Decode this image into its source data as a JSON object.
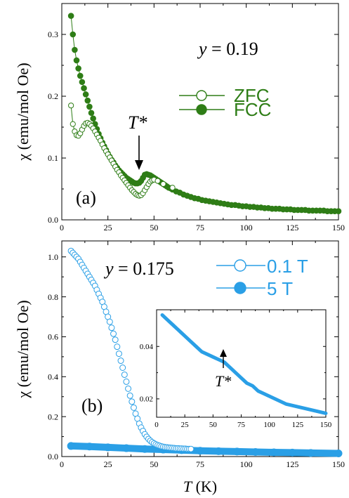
{
  "chart_data": [
    {
      "type": "scatter",
      "panel_label": "(a)",
      "annotation": "y = 0.19",
      "annotation_var": "y",
      "annotation_rest": " = 0.19",
      "marker_label": "T*",
      "ylabel": "χ (emu/mol Oe)",
      "xlim": [
        0,
        150
      ],
      "ylim": [
        0,
        0.35
      ],
      "x_ticks": [
        0,
        25,
        50,
        75,
        100,
        125,
        150
      ],
      "x_tick_labels": [
        "0",
        "25",
        "50",
        "75",
        "100",
        "125",
        "150"
      ],
      "y_ticks": [
        0.0,
        0.1,
        0.2,
        0.3
      ],
      "y_tick_labels": [
        "0.0",
        "0.1",
        "0.2",
        "0.3"
      ],
      "series": [
        {
          "name": "ZFC",
          "color": "#2e7d16",
          "marker": "open-circle",
          "x": [
            5,
            6,
            7,
            8,
            9,
            10,
            11,
            12,
            13,
            14,
            15,
            16,
            17,
            18,
            19,
            20,
            21,
            22,
            23,
            24,
            25,
            26,
            27,
            28,
            29,
            30,
            31,
            32,
            33,
            34,
            35,
            36,
            37,
            38,
            39,
            40,
            41,
            42,
            43,
            44,
            45,
            46,
            47,
            48,
            49,
            50,
            52,
            55,
            60
          ],
          "y": [
            0.185,
            0.155,
            0.143,
            0.137,
            0.136,
            0.14,
            0.146,
            0.152,
            0.156,
            0.157,
            0.155,
            0.152,
            0.148,
            0.143,
            0.138,
            0.133,
            0.128,
            0.122,
            0.116,
            0.111,
            0.106,
            0.101,
            0.096,
            0.091,
            0.086,
            0.081,
            0.077,
            0.072,
            0.068,
            0.064,
            0.06,
            0.056,
            0.052,
            0.048,
            0.045,
            0.042,
            0.04,
            0.039,
            0.04,
            0.043,
            0.048,
            0.053,
            0.058,
            0.062,
            0.064,
            0.065,
            0.063,
            0.058,
            0.052
          ]
        },
        {
          "name": "FCC",
          "color": "#2e7d16",
          "marker": "filled-circle",
          "x": [
            5,
            6,
            7,
            8,
            9,
            10,
            11,
            12,
            13,
            14,
            15,
            16,
            17,
            18,
            19,
            20,
            21,
            22,
            23,
            24,
            25,
            26,
            27,
            28,
            29,
            30,
            31,
            32,
            33,
            34,
            35,
            36,
            37,
            38,
            39,
            40,
            41,
            42,
            43,
            44,
            45,
            46,
            47,
            48,
            49,
            50,
            51,
            52,
            53,
            54,
            55,
            56,
            57,
            58,
            59,
            60,
            62,
            64,
            66,
            68,
            70,
            72,
            74,
            76,
            78,
            80,
            82,
            84,
            86,
            88,
            90,
            92,
            94,
            96,
            98,
            100,
            102,
            104,
            106,
            108,
            110,
            112,
            114,
            116,
            118,
            120,
            122,
            124,
            126,
            128,
            130,
            132,
            134,
            136,
            138,
            140,
            142,
            144,
            146,
            148,
            150
          ],
          "y": [
            0.33,
            0.3,
            0.275,
            0.258,
            0.245,
            0.233,
            0.223,
            0.213,
            0.203,
            0.193,
            0.183,
            0.173,
            0.164,
            0.155,
            0.147,
            0.139,
            0.132,
            0.125,
            0.119,
            0.113,
            0.107,
            0.102,
            0.097,
            0.093,
            0.088,
            0.084,
            0.08,
            0.077,
            0.074,
            0.071,
            0.068,
            0.066,
            0.064,
            0.062,
            0.06,
            0.059,
            0.059,
            0.06,
            0.063,
            0.068,
            0.073,
            0.074,
            0.073,
            0.072,
            0.07,
            0.068,
            0.066,
            0.064,
            0.062,
            0.06,
            0.058,
            0.056,
            0.054,
            0.052,
            0.051,
            0.049,
            0.046,
            0.044,
            0.041,
            0.039,
            0.037,
            0.035,
            0.034,
            0.032,
            0.031,
            0.03,
            0.029,
            0.028,
            0.027,
            0.026,
            0.025,
            0.024,
            0.024,
            0.023,
            0.022,
            0.022,
            0.021,
            0.021,
            0.02,
            0.02,
            0.019,
            0.019,
            0.018,
            0.018,
            0.018,
            0.017,
            0.017,
            0.017,
            0.016,
            0.016,
            0.016,
            0.016,
            0.015,
            0.015,
            0.015,
            0.015,
            0.015,
            0.014,
            0.014,
            0.014,
            0.014
          ]
        }
      ]
    },
    {
      "type": "scatter",
      "panel_label": "(b)",
      "annotation": "y = 0.175",
      "annotation_var": "y",
      "annotation_rest": " = 0.175",
      "ylabel": "χ (emu/mol Oe)",
      "xlabel": "T (K)",
      "xlabel_var": "T",
      "xlabel_rest": " (K)",
      "xlim": [
        0,
        150
      ],
      "ylim": [
        0,
        1.08
      ],
      "x_ticks": [
        0,
        25,
        50,
        75,
        100,
        125,
        150
      ],
      "x_tick_labels": [
        "0",
        "25",
        "50",
        "75",
        "100",
        "125",
        "150"
      ],
      "y_ticks": [
        0.0,
        0.2,
        0.4,
        0.6,
        0.8,
        1.0
      ],
      "y_tick_labels": [
        "0.0",
        "0.2",
        "0.4",
        "0.6",
        "0.8",
        "1.0"
      ],
      "series": [
        {
          "name": "0.1 T",
          "color": "#2a9fe6",
          "marker": "open-circle",
          "x": [
            5,
            6,
            7,
            8,
            9,
            10,
            11,
            12,
            13,
            14,
            15,
            16,
            17,
            18,
            19,
            20,
            21,
            22,
            23,
            24,
            25,
            26,
            27,
            28,
            29,
            30,
            31,
            32,
            33,
            34,
            35,
            36,
            37,
            38,
            39,
            40,
            41,
            42,
            43,
            44,
            45,
            46,
            47,
            48,
            49,
            50,
            51,
            52,
            53,
            54,
            55,
            56,
            57,
            58,
            59,
            60,
            61,
            62,
            63,
            64,
            65,
            66,
            67,
            68,
            69,
            70
          ],
          "y": [
            1.03,
            1.02,
            1.01,
            1.0,
            0.99,
            0.975,
            0.96,
            0.945,
            0.93,
            0.915,
            0.9,
            0.885,
            0.87,
            0.855,
            0.835,
            0.815,
            0.795,
            0.775,
            0.75,
            0.725,
            0.7,
            0.675,
            0.645,
            0.615,
            0.585,
            0.55,
            0.515,
            0.48,
            0.445,
            0.41,
            0.375,
            0.34,
            0.305,
            0.275,
            0.245,
            0.215,
            0.19,
            0.165,
            0.145,
            0.128,
            0.112,
            0.099,
            0.088,
            0.079,
            0.072,
            0.066,
            0.061,
            0.057,
            0.054,
            0.051,
            0.049,
            0.047,
            0.046,
            0.045,
            0.044,
            0.043,
            0.042,
            0.041,
            0.041,
            0.04,
            0.04,
            0.039,
            0.039,
            0.038,
            0.038,
            0.038
          ]
        },
        {
          "name": "5 T",
          "color": "#2a9fe6",
          "marker": "filled-circle",
          "x": [
            5,
            15,
            25,
            35,
            45,
            55,
            65,
            75,
            85,
            95,
            105,
            115,
            125,
            135,
            150
          ],
          "y": [
            0.053,
            0.05,
            0.046,
            0.042,
            0.038,
            0.035,
            0.032,
            0.029,
            0.027,
            0.025,
            0.023,
            0.021,
            0.02,
            0.018,
            0.016
          ]
        }
      ],
      "inset": {
        "marker_label": "T*",
        "xlim": [
          0,
          150
        ],
        "ylim": [
          0.013,
          0.054
        ],
        "x_ticks": [
          0,
          25,
          50,
          75,
          100,
          125,
          150
        ],
        "x_tick_labels": [
          "0",
          "25",
          "50",
          "75",
          "100",
          "125",
          "150"
        ],
        "y_ticks": [
          0.02,
          0.04
        ],
        "y_tick_labels": [
          "0.02",
          "0.04"
        ],
        "x": [
          5,
          10,
          15,
          20,
          25,
          30,
          35,
          40,
          45,
          50,
          55,
          60,
          65,
          70,
          75,
          80,
          85,
          90,
          95,
          100,
          105,
          110,
          115,
          120,
          125,
          130,
          135,
          140,
          145,
          150
        ],
        "y": [
          0.052,
          0.05,
          0.048,
          0.046,
          0.044,
          0.042,
          0.04,
          0.038,
          0.037,
          0.036,
          0.035,
          0.034,
          0.032,
          0.03,
          0.028,
          0.026,
          0.025,
          0.023,
          0.022,
          0.021,
          0.02,
          0.019,
          0.018,
          0.0175,
          0.017,
          0.0165,
          0.016,
          0.0155,
          0.015,
          0.0145
        ]
      }
    }
  ]
}
